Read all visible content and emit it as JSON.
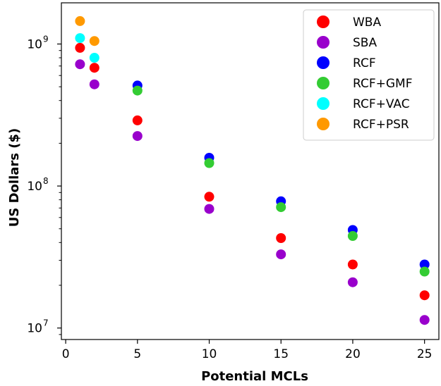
{
  "chart_data": {
    "type": "scatter",
    "title": "",
    "xlabel": "Potential MCLs",
    "ylabel": "US Dollars ($)",
    "x_scale": "linear",
    "y_scale": "log",
    "xlim": [
      -0.3,
      26
    ],
    "ylim": [
      8300000,
      1950000000
    ],
    "x_ticks": [
      0,
      5,
      10,
      15,
      20,
      25
    ],
    "x_tick_labels": [
      "0",
      "5",
      "10",
      "15",
      "20",
      "25"
    ],
    "y_ticks": [
      10000000,
      100000000,
      1000000000
    ],
    "y_tick_labels": [
      {
        "base": "10",
        "exp": "7"
      },
      {
        "base": "10",
        "exp": "8"
      },
      {
        "base": "10",
        "exp": "9"
      }
    ],
    "grid": false,
    "legend_position": "top-right",
    "series": [
      {
        "name": "RCF",
        "color": "#0000ff",
        "points": [
          [
            5,
            510000000
          ],
          [
            10,
            158000000
          ],
          [
            15,
            78000000
          ],
          [
            20,
            49000000
          ],
          [
            25,
            28000000
          ]
        ]
      },
      {
        "name": "RCF+GMF",
        "color": "#33cc33",
        "points": [
          [
            5,
            470000000
          ],
          [
            10,
            145000000
          ],
          [
            15,
            71000000
          ],
          [
            20,
            44500000
          ],
          [
            25,
            25000000
          ]
        ]
      },
      {
        "name": "WBA",
        "color": "#ff0000",
        "points": [
          [
            1,
            940000000
          ],
          [
            2,
            680000000
          ],
          [
            5,
            290000000
          ],
          [
            10,
            84000000
          ],
          [
            15,
            43000000
          ],
          [
            20,
            28000000
          ],
          [
            25,
            17000000
          ]
        ]
      },
      {
        "name": "SBA",
        "color": "#9900cc",
        "points": [
          [
            1,
            720000000
          ],
          [
            2,
            520000000
          ],
          [
            5,
            225000000
          ],
          [
            10,
            69000000
          ],
          [
            15,
            33000000
          ],
          [
            20,
            21000000
          ],
          [
            25,
            11400000
          ]
        ]
      },
      {
        "name": "RCF+VAC",
        "color": "#00ffff",
        "points": [
          [
            1,
            1100000000
          ],
          [
            2,
            800000000
          ]
        ]
      },
      {
        "name": "RCF+PSR",
        "color": "#ff9900",
        "points": [
          [
            1,
            1450000000
          ],
          [
            2,
            1050000000
          ]
        ]
      }
    ],
    "legend_order": [
      "WBA",
      "SBA",
      "RCF",
      "RCF+GMF",
      "RCF+VAC",
      "RCF+PSR"
    ]
  }
}
